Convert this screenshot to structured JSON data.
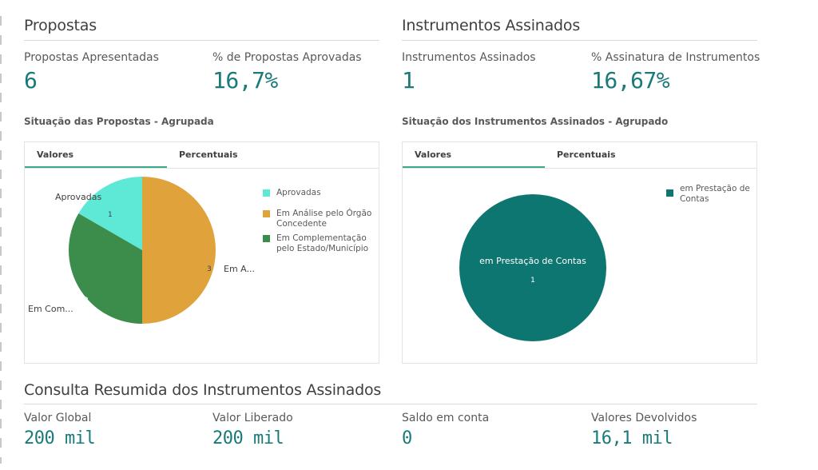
{
  "propostas": {
    "title": "Propostas",
    "kpi1": {
      "label": "Propostas Apresentadas",
      "value": "6"
    },
    "kpi2": {
      "label": "% de Propostas Aprovadas",
      "value": "16,7%"
    },
    "chart_title": "Situação das Propostas - Agrupada",
    "tabs": [
      "Valores",
      "Percentuais"
    ],
    "slice_labels": {
      "aprovadas": "Aprovadas",
      "analise": "Em A...",
      "complementacao": "Em Com..."
    },
    "slice_values": {
      "aprovadas": "1",
      "analise": "3",
      "complementacao": "2"
    },
    "legend": {
      "item1": "Aprovadas",
      "item2_line1": "Em Análise pelo Órgão",
      "item2_line2": "Concedente",
      "item3_line1": "Em Complementação",
      "item3_line2": "pelo Estado/Município"
    }
  },
  "instrumentos": {
    "title": "Instrumentos Assinados",
    "kpi1": {
      "label": "Instrumentos Assinados",
      "value": "1"
    },
    "kpi2": {
      "label": "% Assinatura de Instrumentos",
      "value": "16,67%"
    },
    "chart_title": "Situação dos Instrumentos Assinados - Agrupado",
    "tabs": [
      "Valores",
      "Percentuais"
    ],
    "slice_label": "em Prestação de Contas",
    "slice_value": "1",
    "legend": {
      "item1_line1": "em Prestação de",
      "item1_line2": "Contas"
    }
  },
  "consulta": {
    "title": "Consulta Resumida dos Instrumentos Assinados",
    "kpis": [
      {
        "label": "Valor Global",
        "value": "200 mil"
      },
      {
        "label": "Valor Liberado",
        "value": "200 mil"
      },
      {
        "label": "Saldo em conta",
        "value": "0"
      },
      {
        "label": "Valores Devolvidos",
        "value": "16,1 mil"
      }
    ]
  },
  "colors": {
    "aprovadas": "#5ee8d6",
    "analise": "#e0a23a",
    "complementacao": "#3c8c4c",
    "prestacao": "#0e7670",
    "kpi_value": "#1a7a7a",
    "tab_active": "#3aa88a"
  },
  "chart_data": [
    {
      "type": "pie",
      "title": "Situação das Propostas - Agrupada",
      "categories": [
        "Aprovadas",
        "Em Análise pelo Órgão Concedente",
        "Em Complementação pelo Estado/Município"
      ],
      "values": [
        1,
        3,
        2
      ],
      "legend_position": "top-right"
    },
    {
      "type": "pie",
      "title": "Situação dos Instrumentos Assinados - Agrupado",
      "categories": [
        "em Prestação de Contas"
      ],
      "values": [
        1
      ],
      "legend_position": "top-right"
    }
  ]
}
